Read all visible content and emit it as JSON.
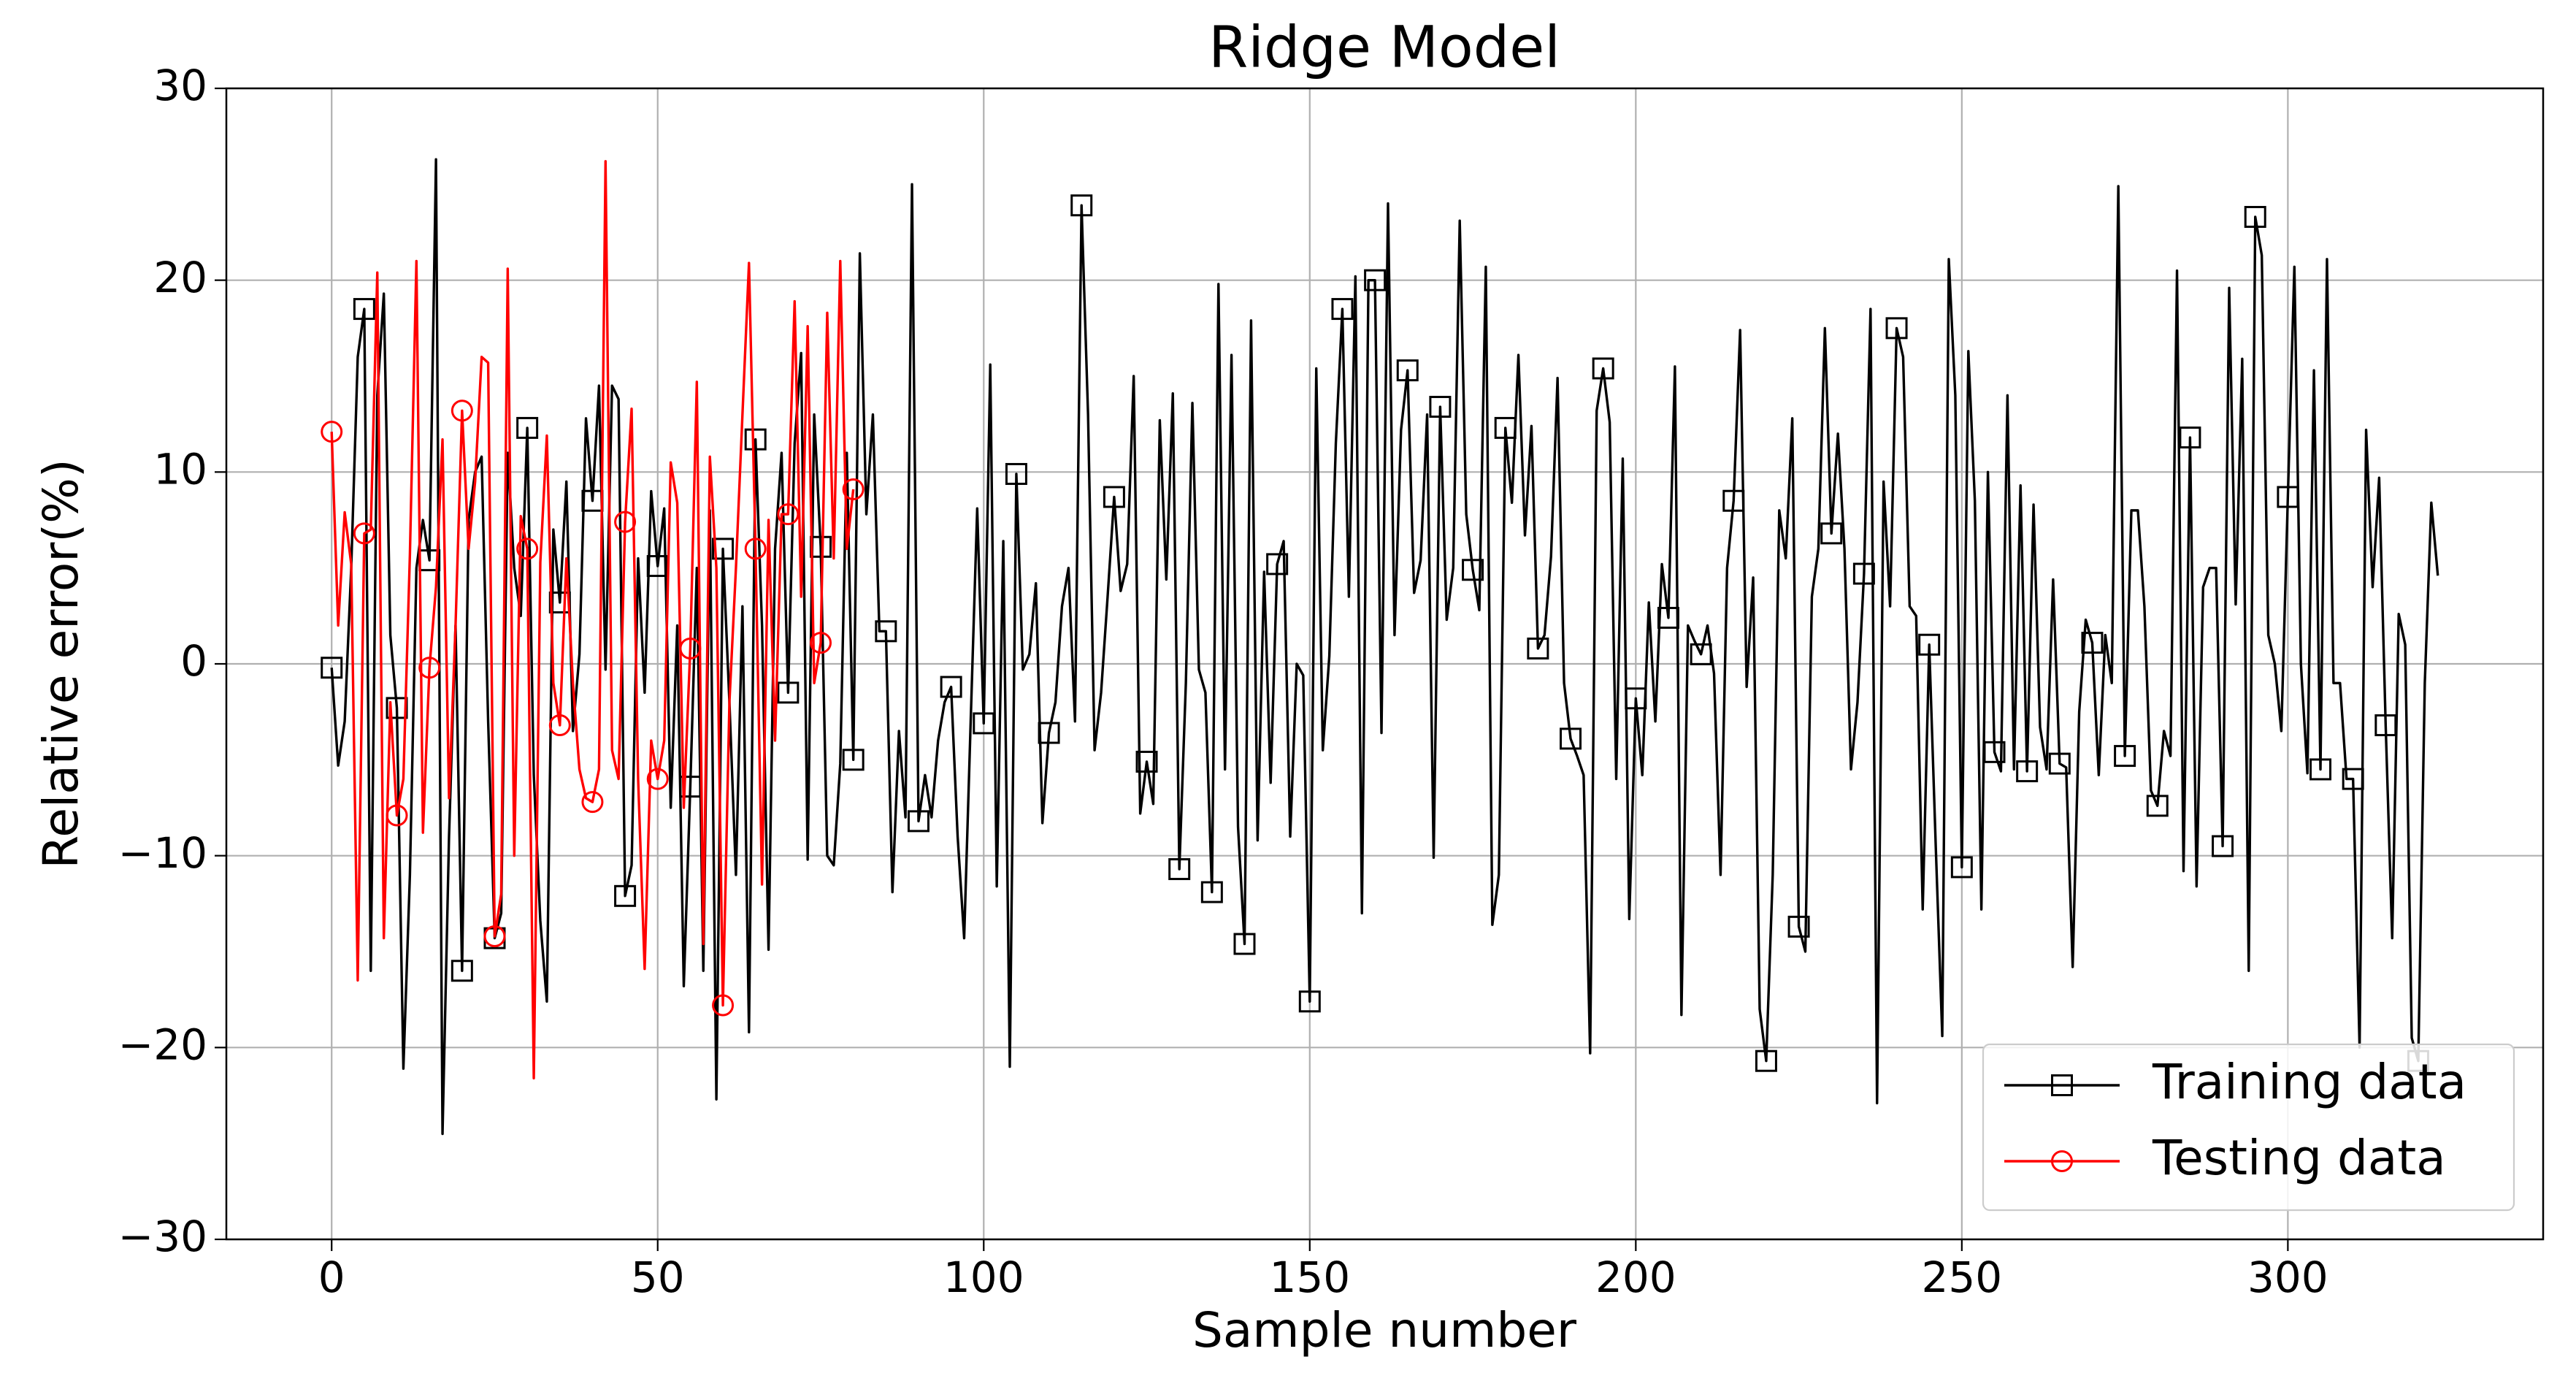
{
  "chart_data": {
    "type": "line",
    "title": "Ridge Model",
    "x_label": "Sample number",
    "y_label": "Relative error(%)",
    "xlim": [
      -16.15,
      339.15
    ],
    "ylim": [
      -30,
      30
    ],
    "xticks": [
      0,
      50,
      100,
      150,
      200,
      250,
      300
    ],
    "yticks": [
      {
        "value": -30,
        "label": "−30"
      },
      {
        "value": -20,
        "label": "−20"
      },
      {
        "value": -10,
        "label": "−10"
      },
      0,
      10,
      20,
      30
    ],
    "grid": true,
    "legend": "lower right",
    "markevery": 5,
    "series": [
      {
        "name": "Training data",
        "color": "#000000",
        "marker": "square",
        "values": [
          -0.2,
          -5.3,
          -3,
          5,
          16,
          18.5,
          -16,
          14,
          19.3,
          1.5,
          -2.3,
          -21.1,
          -11,
          5,
          7.5,
          5.4,
          26.3,
          -24.5,
          -9,
          2,
          -16,
          7.5,
          10,
          10.8,
          -3,
          -14.3,
          -13,
          11,
          5,
          2.5,
          12.3,
          -5.8,
          -13.4,
          -17.6,
          7,
          3.2,
          9.5,
          -3.5,
          0.5,
          12.8,
          8.5,
          14.5,
          -0.3,
          14.5,
          13.8,
          -12.1,
          -10.5,
          5.5,
          -1.5,
          9,
          5.1,
          8.1,
          -7.5,
          2,
          -16.8,
          -6.4,
          5,
          -16,
          8,
          -22.7,
          6,
          -2,
          -11,
          3,
          -19.2,
          11.7,
          2,
          -14.9,
          6,
          11,
          -1.5,
          11.5,
          16.2,
          -10.2,
          13,
          6.1,
          -10,
          -10.5,
          -5.2,
          11,
          -5,
          21.4,
          7.8,
          13,
          1.7,
          1.7,
          -11.9,
          -3.5,
          -8,
          25,
          -8.2,
          -5.8,
          -8,
          -4,
          -2,
          -1.2,
          -9,
          -14.3,
          -3,
          8.1,
          -3.1,
          15.6,
          -11.6,
          6.4,
          -21,
          9.9,
          -0.3,
          0.5,
          4.2,
          -8.3,
          -3.6,
          -2,
          3,
          5,
          -3,
          23.9,
          13,
          -4.5,
          -1.5,
          3.5,
          8.7,
          3.8,
          5.2,
          15,
          -7.8,
          -5.1,
          -7.3,
          12.7,
          4.4,
          14.1,
          -10.7,
          -1,
          13.6,
          -0.3,
          -1.5,
          -11.9,
          19.8,
          -5.5,
          16.1,
          -8.5,
          -14.6,
          17.9,
          -9.2,
          4.8,
          -6.2,
          5.2,
          6.4,
          -9,
          0,
          -0.6,
          -17.6,
          15.4,
          -4.5,
          0.4,
          11.5,
          18.5,
          3.5,
          20.2,
          -13,
          20,
          20,
          -3.6,
          24,
          1.5,
          12.2,
          15.3,
          3.7,
          5.4,
          13,
          -10.1,
          13.4,
          2.3,
          5,
          23.1,
          7.8,
          4.9,
          2.8,
          20.7,
          -13.6,
          -11,
          12.3,
          8.4,
          16.1,
          6.7,
          12.4,
          0.8,
          1.5,
          5.6,
          14.9,
          -1,
          -3.9,
          -4.8,
          -5.8,
          -20.3,
          13.2,
          15.4,
          12.6,
          -6,
          10.7,
          -13.3,
          -1.8,
          -5.8,
          3.2,
          -3,
          5.2,
          2.4,
          15.5,
          -18.3,
          2,
          1.2,
          0.5,
          2,
          -0.5,
          -11,
          5,
          8.5,
          17.4,
          -1.2,
          4.5,
          -18,
          -20.7,
          -11,
          8,
          5.5,
          12.8,
          -13.7,
          -15,
          3.5,
          6,
          17.5,
          6.8,
          12,
          6,
          -5.5,
          -2,
          4.7,
          18.5,
          -22.9,
          9.5,
          3,
          17.5,
          16,
          3,
          2.5,
          -12.8,
          1,
          -9.5,
          -19.4,
          21.1,
          14,
          -10.6,
          16.3,
          8.5,
          -12.8,
          10,
          -4.6,
          -5.6,
          14,
          -5.5,
          9.3,
          -5.6,
          8.3,
          -3.3,
          -5.5,
          4.4,
          -5.2,
          -5.4,
          -15.8,
          -2.5,
          2.3,
          1.1,
          -5.8,
          1.5,
          -1,
          24.9,
          -4.8,
          8,
          8,
          3,
          -6.6,
          -7.4,
          -3.5,
          -4.8,
          20.5,
          -10.8,
          11.8,
          -11.6,
          4,
          5,
          5,
          -9.5,
          19.6,
          3.1,
          15.9,
          -16,
          23.3,
          21.3,
          1.5,
          0,
          -3.5,
          8.7,
          20.7,
          0,
          -5.7,
          15.3,
          -5.5,
          21.1,
          -1,
          -1,
          -6,
          -6,
          -20,
          12.2,
          4,
          9.7,
          -3.2,
          -14.3,
          2.6,
          1,
          -19.5,
          -20.7,
          -1,
          8.4,
          4.6
        ]
      },
      {
        "name": "Testing data",
        "color": "#ff0000",
        "marker": "circle",
        "values": [
          12.1,
          2,
          7.9,
          5.2,
          -16.5,
          6.8,
          7,
          20.4,
          -14.3,
          -2,
          -7.9,
          -6,
          5.7,
          21,
          -8.8,
          -0.2,
          4,
          11.7,
          -7,
          2,
          13.2,
          6,
          9.5,
          16,
          15.7,
          -14.2,
          -12,
          20.6,
          -10,
          7.7,
          6,
          -21.6,
          5.3,
          11.9,
          -1,
          -3.2,
          5.5,
          -1,
          -5.5,
          -7,
          -7.2,
          -5.5,
          26.2,
          -4.5,
          -6,
          7.4,
          13.3,
          -6,
          -15.9,
          -4,
          -6,
          -4,
          10.5,
          8.4,
          -7.5,
          0.8,
          14.7,
          -14.6,
          10.8,
          5,
          -17.8,
          -2,
          5,
          13,
          20.9,
          6,
          -11.5,
          7.5,
          -4,
          7.8,
          7.8,
          18.9,
          3.5,
          17.6,
          -1,
          1.1,
          18.3,
          5.5,
          21,
          6,
          9.1
        ]
      }
    ]
  }
}
